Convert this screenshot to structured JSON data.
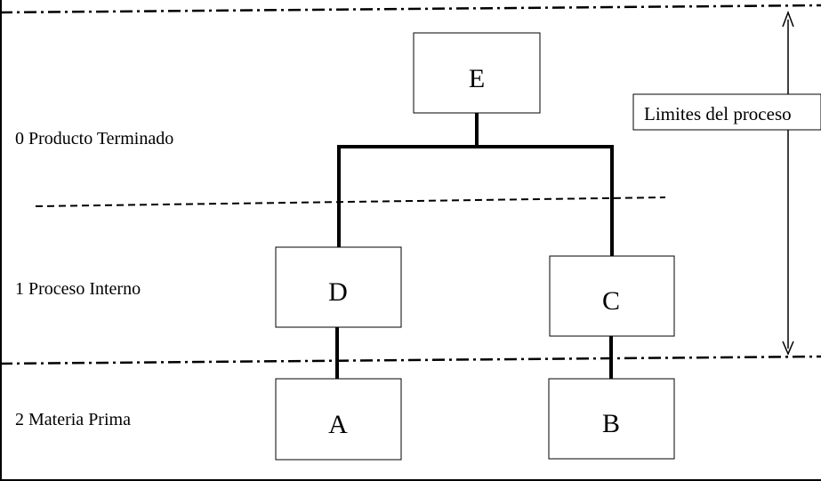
{
  "levels": [
    {
      "label": "0 Producto Terminado"
    },
    {
      "label": "1 Proceso Interno"
    },
    {
      "label": "2 Materia Prima"
    }
  ],
  "nodes": {
    "E": {
      "label": "E"
    },
    "D": {
      "label": "D"
    },
    "C": {
      "label": "C"
    },
    "A": {
      "label": "A"
    },
    "B": {
      "label": "B"
    }
  },
  "boundary": {
    "label": "Limites del proceso"
  },
  "colors": {
    "line": "#000000",
    "background": "#ffffff"
  }
}
